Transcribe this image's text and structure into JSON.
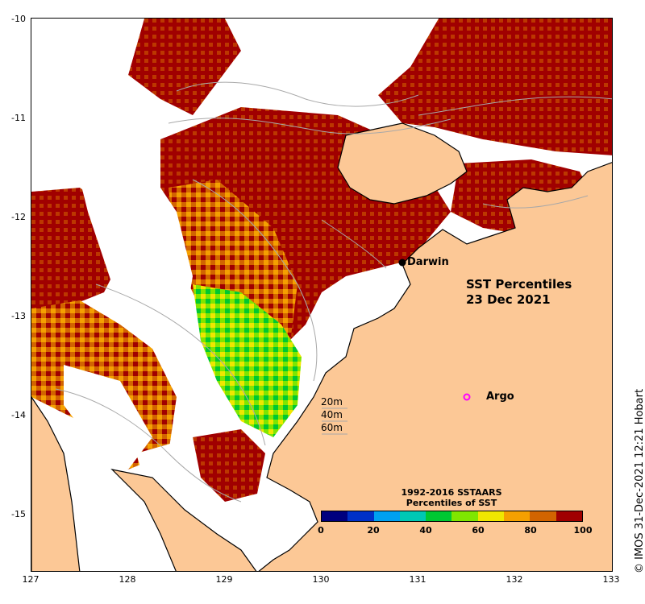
{
  "map": {
    "title_line1": "SST Percentiles",
    "title_line2": "23 Dec 2021",
    "place_darwin": "Darwin",
    "place_argo": "Argo",
    "depth_contours": [
      "20m",
      "40m",
      "60m"
    ],
    "colors": {
      "land": "#fcc896",
      "coast": "#000000",
      "contour": "#a8a8a8",
      "no_data": "#ffffff",
      "argo_marker": "#ff00ff"
    }
  },
  "axes": {
    "x_ticks": [
      "127",
      "128",
      "129",
      "130",
      "131",
      "132",
      "133"
    ],
    "y_ticks": [
      "-10",
      "-11",
      "-12",
      "-13",
      "-14",
      "-15"
    ],
    "x_range": [
      127,
      133
    ],
    "y_range": [
      -15.6,
      -10
    ]
  },
  "colorbar": {
    "title_line1": "1992-2016 SSTAARS",
    "title_line2": "Percentiles of SST",
    "ticks": [
      "0",
      "20",
      "40",
      "60",
      "80",
      "100"
    ],
    "colors": [
      "#00007f",
      "#0030c8",
      "#00a0f0",
      "#00c8b4",
      "#00c832",
      "#7fe600",
      "#f0e600",
      "#f5a000",
      "#d26400",
      "#a00000"
    ]
  },
  "credit": "© IMOS 31-Dec-2021 12:21 Hobart"
}
